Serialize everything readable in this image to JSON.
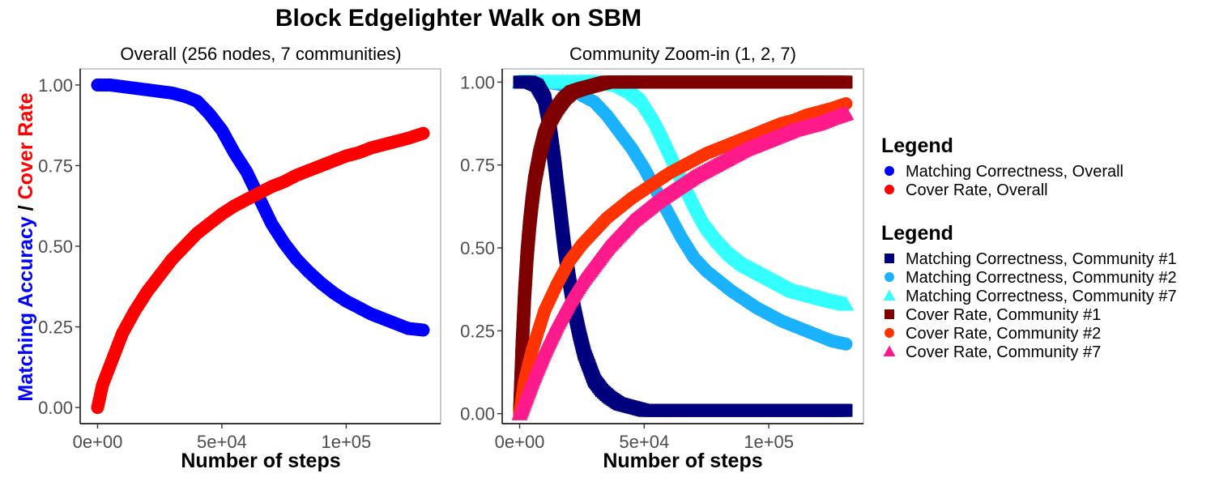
{
  "title": "Block Edgelighter Walk on SBM",
  "ylabel_parts": [
    {
      "text": "Matching Accuracy",
      "color": "#0000ff"
    },
    {
      "text": " / ",
      "color": "#000000"
    },
    {
      "text": "Cover Rate",
      "color": "#ff0000"
    }
  ],
  "legends": [
    {
      "title": "Legend",
      "items": [
        {
          "label": "Matching Correctness, Overall",
          "color": "#0000ff",
          "shape": "circle"
        },
        {
          "label": "Cover Rate, Overall",
          "color": "#ff0000",
          "shape": "circle"
        }
      ]
    },
    {
      "title": "Legend",
      "items": [
        {
          "label": "Matching Correctness, Community #1",
          "color": "#00007f",
          "shape": "square"
        },
        {
          "label": "Matching Correctness, Community #2",
          "color": "#1ab2ff",
          "shape": "circle"
        },
        {
          "label": "Matching Correctness, Community #7",
          "color": "#33ffff",
          "shape": "triangle"
        },
        {
          "label": "Cover Rate, Community #1",
          "color": "#7f0000",
          "shape": "square"
        },
        {
          "label": "Cover Rate, Community #2",
          "color": "#ff3300",
          "shape": "circle"
        },
        {
          "label": "Cover Rate, Community #7",
          "color": "#ff1a8c",
          "shape": "triangle"
        }
      ]
    }
  ],
  "chart_data": [
    {
      "type": "scatter",
      "title": "Overall (256 nodes, 7 communities)",
      "xlabel": "Number of steps",
      "ylabel": "Matching Accuracy / Cover Rate",
      "xlim": [
        -7000,
        138000
      ],
      "ylim": [
        -0.05,
        1.05
      ],
      "xticks": [
        0,
        50000,
        100000
      ],
      "xtick_labels": [
        "0e+00",
        "5e+04",
        "1e+05"
      ],
      "yticks": [
        0,
        0.25,
        0.5,
        0.75,
        1.0
      ],
      "ytick_labels": [
        "0.00",
        "0.25",
        "0.50",
        "0.75",
        "1.00"
      ],
      "series": [
        {
          "name": "Matching Correctness, Overall",
          "color": "#0000ff",
          "shape": "circle",
          "x": [
            0,
            5000,
            10000,
            15000,
            20000,
            25000,
            30000,
            35000,
            40000,
            45000,
            50000,
            55000,
            60000,
            65000,
            70000,
            75000,
            80000,
            85000,
            90000,
            95000,
            100000,
            105000,
            110000,
            115000,
            120000,
            125000,
            131000
          ],
          "y": [
            1.0,
            1.0,
            0.995,
            0.99,
            0.985,
            0.98,
            0.975,
            0.965,
            0.95,
            0.91,
            0.86,
            0.79,
            0.73,
            0.65,
            0.57,
            0.51,
            0.46,
            0.42,
            0.385,
            0.355,
            0.33,
            0.31,
            0.29,
            0.275,
            0.26,
            0.245,
            0.24
          ]
        },
        {
          "name": "Cover Rate, Overall",
          "color": "#ff0000",
          "shape": "circle",
          "x": [
            0,
            2000,
            5000,
            10000,
            15000,
            20000,
            25000,
            30000,
            35000,
            40000,
            45000,
            50000,
            55000,
            60000,
            65000,
            70000,
            75000,
            80000,
            85000,
            90000,
            95000,
            100000,
            105000,
            110000,
            115000,
            120000,
            125000,
            131000
          ],
          "y": [
            0.0,
            0.07,
            0.13,
            0.23,
            0.3,
            0.36,
            0.41,
            0.46,
            0.5,
            0.54,
            0.57,
            0.6,
            0.625,
            0.645,
            0.665,
            0.685,
            0.7,
            0.72,
            0.735,
            0.75,
            0.765,
            0.78,
            0.79,
            0.805,
            0.815,
            0.825,
            0.835,
            0.85
          ]
        }
      ]
    },
    {
      "type": "scatter",
      "title": "Community Zoom-in (1, 2, 7)",
      "xlabel": "Number of steps",
      "ylabel": "",
      "xlim": [
        -7000,
        138000
      ],
      "ylim": [
        -0.03,
        1.04
      ],
      "xticks": [
        0,
        50000,
        100000
      ],
      "xtick_labels": [
        "0e+00",
        "5e+04",
        "1e+05"
      ],
      "yticks": [
        0,
        0.25,
        0.5,
        0.75,
        1.0
      ],
      "ytick_labels": [
        "0.00",
        "0.25",
        "0.50",
        "0.75",
        "1.00"
      ],
      "series": [
        {
          "name": "Matching Correctness, Community #2",
          "color": "#1ab2ff",
          "shape": "circle",
          "x": [
            0,
            5000,
            10000,
            15000,
            20000,
            25000,
            30000,
            35000,
            40000,
            45000,
            50000,
            55000,
            60000,
            65000,
            70000,
            75000,
            80000,
            85000,
            90000,
            95000,
            100000,
            105000,
            110000,
            115000,
            120000,
            125000,
            131000
          ],
          "y": [
            1.0,
            1.0,
            1.0,
            0.995,
            0.985,
            0.96,
            0.94,
            0.9,
            0.85,
            0.8,
            0.74,
            0.67,
            0.6,
            0.53,
            0.47,
            0.43,
            0.4,
            0.37,
            0.345,
            0.32,
            0.3,
            0.28,
            0.265,
            0.25,
            0.235,
            0.22,
            0.21
          ]
        },
        {
          "name": "Matching Correctness, Community #7",
          "color": "#33ffff",
          "shape": "triangle",
          "x": [
            0,
            5000,
            10000,
            15000,
            20000,
            25000,
            30000,
            35000,
            40000,
            45000,
            50000,
            55000,
            60000,
            65000,
            70000,
            75000,
            80000,
            85000,
            90000,
            95000,
            100000,
            105000,
            110000,
            115000,
            120000,
            125000,
            131000
          ],
          "y": [
            1.0,
            1.0,
            1.0,
            1.0,
            1.0,
            1.0,
            1.0,
            0.995,
            0.99,
            0.97,
            0.94,
            0.88,
            0.8,
            0.72,
            0.64,
            0.57,
            0.52,
            0.48,
            0.45,
            0.43,
            0.41,
            0.39,
            0.37,
            0.36,
            0.35,
            0.34,
            0.33
          ]
        },
        {
          "name": "Matching Correctness, Community #1",
          "color": "#00007f",
          "shape": "square",
          "x": [
            0,
            4000,
            7000,
            10000,
            12000,
            14000,
            16000,
            18000,
            20000,
            22000,
            24000,
            26000,
            28000,
            30000,
            33000,
            36000,
            40000,
            45000,
            50000,
            55000,
            60000,
            70000,
            80000,
            90000,
            100000,
            110000,
            120000,
            131000
          ],
          "y": [
            1.0,
            1.0,
            0.99,
            0.95,
            0.87,
            0.76,
            0.63,
            0.5,
            0.4,
            0.31,
            0.24,
            0.18,
            0.14,
            0.1,
            0.07,
            0.05,
            0.03,
            0.02,
            0.01,
            0.01,
            0.01,
            0.01,
            0.01,
            0.01,
            0.01,
            0.01,
            0.01,
            0.01
          ]
        },
        {
          "name": "Cover Rate, Community #1",
          "color": "#7f0000",
          "shape": "square",
          "x": [
            0,
            1000,
            2000,
            3000,
            4000,
            5000,
            6000,
            8000,
            10000,
            12000,
            15000,
            18000,
            21000,
            25000,
            30000,
            35000,
            40000,
            50000,
            60000,
            70000,
            80000,
            90000,
            100000,
            110000,
            120000,
            131000
          ],
          "y": [
            0.0,
            0.2,
            0.36,
            0.48,
            0.57,
            0.64,
            0.7,
            0.78,
            0.84,
            0.88,
            0.92,
            0.95,
            0.97,
            0.98,
            0.99,
            1.0,
            1.0,
            1.0,
            1.0,
            1.0,
            1.0,
            1.0,
            1.0,
            1.0,
            1.0,
            1.0
          ]
        },
        {
          "name": "Cover Rate, Community #2",
          "color": "#ff3300",
          "shape": "circle",
          "x": [
            0,
            2000,
            5000,
            10000,
            15000,
            20000,
            25000,
            30000,
            35000,
            40000,
            45000,
            50000,
            55000,
            60000,
            65000,
            70000,
            75000,
            80000,
            85000,
            90000,
            95000,
            100000,
            105000,
            110000,
            115000,
            120000,
            125000,
            131000
          ],
          "y": [
            0.0,
            0.1,
            0.19,
            0.31,
            0.39,
            0.46,
            0.51,
            0.55,
            0.59,
            0.62,
            0.65,
            0.675,
            0.7,
            0.725,
            0.745,
            0.765,
            0.785,
            0.8,
            0.815,
            0.83,
            0.845,
            0.86,
            0.875,
            0.885,
            0.9,
            0.91,
            0.92,
            0.935
          ]
        },
        {
          "name": "Cover Rate, Community #7",
          "color": "#ff1a8c",
          "shape": "triangle",
          "x": [
            0,
            2000,
            5000,
            10000,
            15000,
            20000,
            25000,
            30000,
            35000,
            40000,
            45000,
            50000,
            55000,
            60000,
            65000,
            70000,
            75000,
            80000,
            85000,
            90000,
            95000,
            100000,
            105000,
            110000,
            115000,
            120000,
            125000,
            131000
          ],
          "y": [
            0.0,
            0.04,
            0.1,
            0.19,
            0.27,
            0.34,
            0.4,
            0.45,
            0.5,
            0.54,
            0.58,
            0.61,
            0.64,
            0.665,
            0.69,
            0.715,
            0.735,
            0.755,
            0.775,
            0.795,
            0.81,
            0.825,
            0.84,
            0.855,
            0.865,
            0.875,
            0.89,
            0.905
          ]
        }
      ]
    }
  ]
}
